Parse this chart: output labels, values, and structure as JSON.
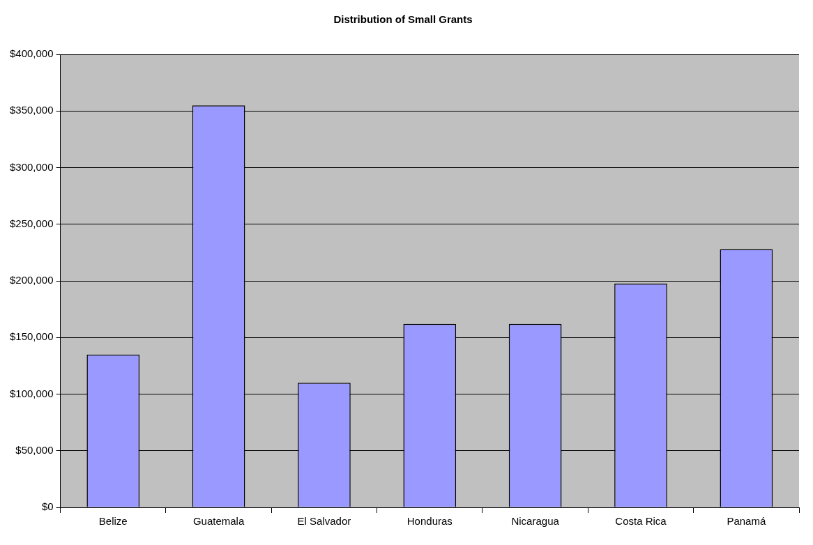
{
  "chart_data": {
    "type": "bar",
    "title": "Distribution of Small Grants",
    "categories": [
      "Belize",
      "Guatemala",
      "El Salvador",
      "Honduras",
      "Nicaragua",
      "Costa Rica",
      "Panamá"
    ],
    "values": [
      135000,
      355000,
      110000,
      162000,
      162000,
      197500,
      228000
    ],
    "color": "#9999ff",
    "ylim": [
      0,
      400000
    ],
    "yticks": [
      {
        "value": 0,
        "label": "$0"
      },
      {
        "value": 50000,
        "label": "$50,000"
      },
      {
        "value": 100000,
        "label": "$100,000"
      },
      {
        "value": 150000,
        "label": "$150,000"
      },
      {
        "value": 200000,
        "label": "$200,000"
      },
      {
        "value": 250000,
        "label": "$250,000"
      },
      {
        "value": 300000,
        "label": "$300,000"
      },
      {
        "value": 350000,
        "label": "$350,000"
      },
      {
        "value": 400000,
        "label": "$400,000"
      }
    ],
    "grid": "y",
    "legend": false
  }
}
